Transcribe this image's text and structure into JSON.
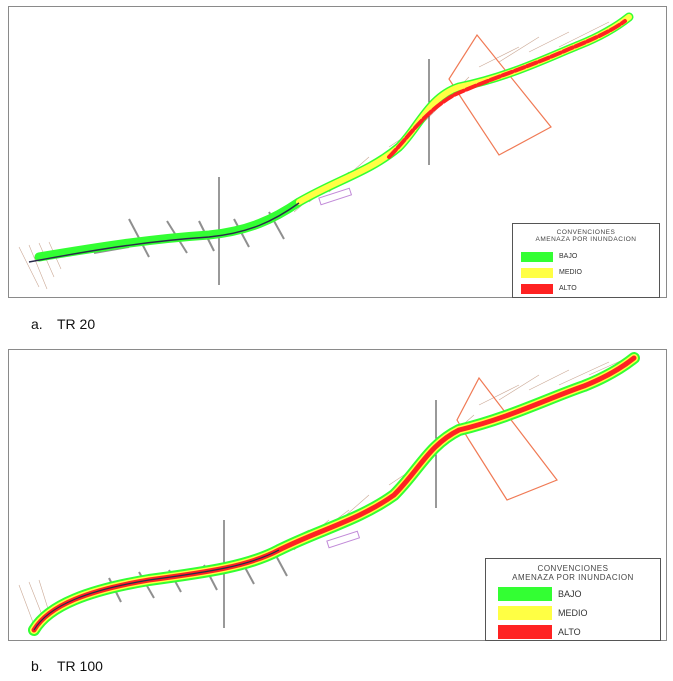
{
  "panels": [
    {
      "id": "a",
      "caption_letter": "a.",
      "caption_text": "TR 20",
      "legend": {
        "title_line1": "CONVENCIONES",
        "title_line2": "AMENAZA POR INUNDACION",
        "items": [
          {
            "label": "BAJO",
            "color": "#33ff33"
          },
          {
            "label": "MEDIO",
            "color": "#ffff44"
          },
          {
            "label": "ALTO",
            "color": "#ff2222"
          }
        ]
      }
    },
    {
      "id": "b",
      "caption_letter": "b.",
      "caption_text": "TR 100",
      "legend": {
        "title_line1": "CONVENCIONES",
        "title_line2": "AMENAZA POR INUNDACION",
        "items": [
          {
            "label": "BAJO",
            "color": "#33ff33"
          },
          {
            "label": "MEDIO",
            "color": "#ffff44"
          },
          {
            "label": "ALTO",
            "color": "#ff2222"
          }
        ]
      }
    }
  ],
  "colors": {
    "river_low": "#33ff33",
    "river_medium": "#ffff44",
    "river_high": "#ff2222",
    "contours": "#b5846a",
    "boundary_polygon": "#f07a55",
    "structure": "#9c8fa0",
    "reference_line": "#555555",
    "channel": "#2a2a4a"
  }
}
